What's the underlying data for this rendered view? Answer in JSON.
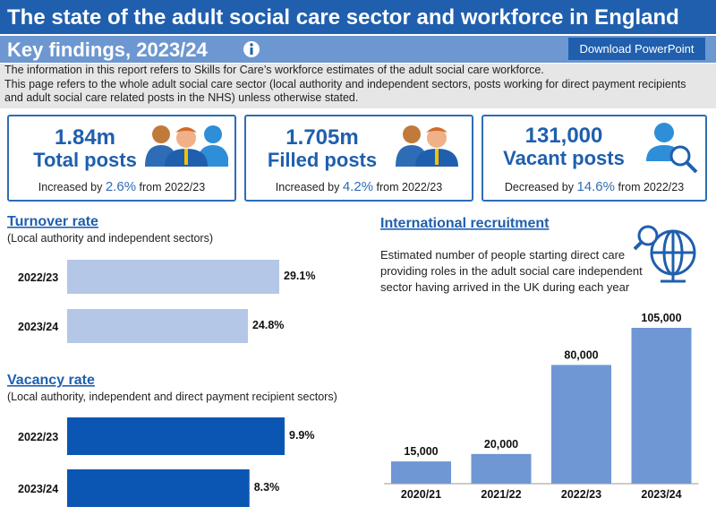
{
  "header": {
    "title": "The state of the adult social care sector and workforce in England",
    "subtitle": "Key findings, 2023/24",
    "button": "Download PowerPoint"
  },
  "intro": [
    "The information in this report refers to Skills for Care’s workforce estimates of the adult social care workforce.",
    "This page refers to the whole adult social care sector (local authority and independent sectors, posts working for direct payment recipients and adult social care related posts in the NHS) unless otherwise stated."
  ],
  "cards": [
    {
      "value": "1.84m",
      "label": "Total posts",
      "change_prefix": "Increased by",
      "change": "2.6%",
      "change_suffix": "from 2022/23"
    },
    {
      "value": "1.705m",
      "label": "Filled posts",
      "change_prefix": "Increased by",
      "change": "4.2%",
      "change_suffix": "from 2022/23"
    },
    {
      "value": "131,000",
      "label": "Vacant posts",
      "change_prefix": "Decreased by",
      "change": "14.6%",
      "change_suffix": "from 2022/23"
    }
  ],
  "chart_data": [
    {
      "type": "barh",
      "title": "Turnover rate",
      "subtitle": "(Local authority and independent sectors)",
      "categories": [
        "2022/23",
        "2023/24"
      ],
      "values": [
        29.1,
        24.8
      ],
      "value_labels": [
        "29.1%",
        "24.8%"
      ],
      "color": "#b4c7e7"
    },
    {
      "type": "barh",
      "title": "Vacancy rate",
      "subtitle": "(Local authority, independent and direct payment recipient sectors)",
      "categories": [
        "2022/23",
        "2023/24"
      ],
      "values": [
        9.9,
        8.3
      ],
      "value_labels": [
        "9.9%",
        "8.3%"
      ],
      "color": "#0b56b3"
    },
    {
      "type": "bar",
      "title": "International recruitment",
      "subtitle": "Estimated number of people starting direct care providing roles in the adult social care independent sector having arrived in the UK during each year",
      "categories": [
        "2020/21",
        "2021/22",
        "2022/23",
        "2023/24"
      ],
      "values": [
        15000,
        20000,
        80000,
        105000
      ],
      "value_labels": [
        "15,000",
        "20,000",
        "80,000",
        "105,000"
      ],
      "color": "#6e97d3"
    }
  ]
}
